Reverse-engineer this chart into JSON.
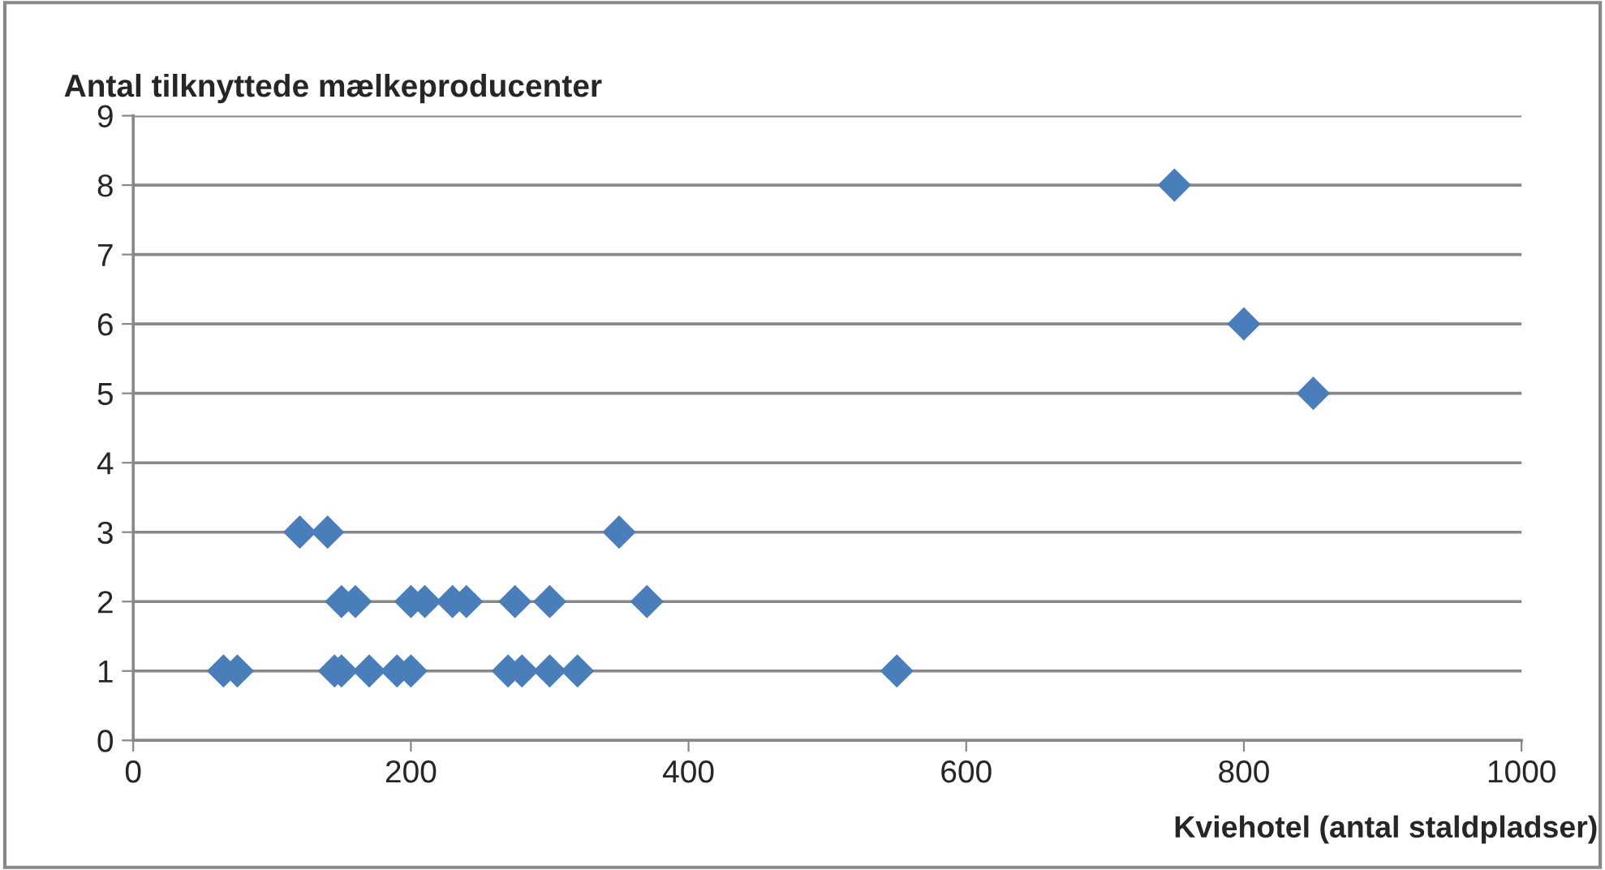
{
  "chart_data": {
    "type": "scatter",
    "xlabel": "Kviehotel (antal staldpladser)",
    "ylabel": "Antal tilknyttede mælkeproducenter",
    "x": [
      120,
      140,
      350,
      150,
      160,
      200,
      210,
      230,
      240,
      275,
      300,
      370,
      65,
      75,
      145,
      150,
      170,
      190,
      200,
      270,
      280,
      300,
      320,
      550,
      750,
      800,
      850
    ],
    "series": [
      {
        "color": "#4a7ebb",
        "values": [
          3,
          3,
          3,
          2,
          2,
          2,
          2,
          2,
          2,
          2,
          2,
          2,
          1,
          1,
          1,
          1,
          1,
          1,
          1,
          1,
          1,
          1,
          1,
          1,
          8,
          6,
          5
        ]
      }
    ],
    "xlim": [
      0,
      1000
    ],
    "xticks": [
      0,
      200,
      400,
      600,
      800,
      1000
    ],
    "ylim": [
      0,
      9
    ],
    "yticks": [
      0,
      1,
      2,
      3,
      4,
      5,
      6,
      7,
      8,
      9
    ],
    "grid": "y",
    "marker": "diamond",
    "legend": false
  }
}
